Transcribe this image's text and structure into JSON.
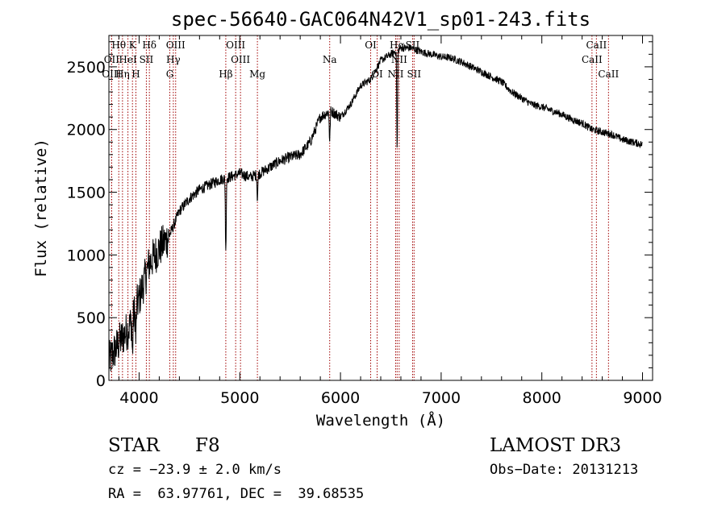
{
  "chart_data": {
    "type": "line",
    "title": "spec-56640-GAC064N42V1_sp01-243.fits",
    "xlabel": "Wavelength (Å)",
    "ylabel": "Flux (relative)",
    "xlim": [
      3700,
      9100
    ],
    "ylim": [
      0,
      2750
    ],
    "x_ticks": [
      4000,
      5000,
      6000,
      7000,
      8000,
      9000
    ],
    "y_ticks": [
      0,
      500,
      1000,
      1500,
      2000,
      2500
    ],
    "continuum": {
      "x": [
        3700,
        3800,
        3900,
        4000,
        4100,
        4200,
        4300,
        4400,
        4500,
        4600,
        4700,
        4800,
        4900,
        5000,
        5100,
        5200,
        5300,
        5400,
        5500,
        5600,
        5700,
        5800,
        5900,
        6000,
        6100,
        6200,
        6300,
        6400,
        6500,
        6600,
        6700,
        6800,
        6900,
        7000,
        7100,
        7200,
        7300,
        7400,
        7500,
        7600,
        7700,
        7800,
        7900,
        8000,
        8100,
        8200,
        8300,
        8400,
        8500,
        8600,
        8700,
        8800,
        8900,
        9000
      ],
      "y": [
        150,
        300,
        420,
        650,
        930,
        1050,
        1150,
        1350,
        1450,
        1520,
        1560,
        1600,
        1620,
        1650,
        1620,
        1650,
        1700,
        1750,
        1780,
        1800,
        1900,
        2100,
        2150,
        2100,
        2200,
        2350,
        2400,
        2550,
        2600,
        2650,
        2650,
        2620,
        2600,
        2580,
        2570,
        2540,
        2500,
        2460,
        2420,
        2380,
        2300,
        2250,
        2200,
        2180,
        2150,
        2120,
        2080,
        2050,
        2000,
        1980,
        1960,
        1920,
        1900,
        1880
      ]
    },
    "absorption_features": [
      {
        "x": 3934,
        "depth": 300
      },
      {
        "x": 3968,
        "depth": 260
      },
      {
        "x": 4861,
        "depth": 600
      },
      {
        "x": 5175,
        "depth": 200
      },
      {
        "x": 5893,
        "depth": 250
      },
      {
        "x": 6563,
        "depth": 800
      }
    ],
    "lines": [
      {
        "name": "Hθ",
        "x": 3798,
        "row": 0
      },
      {
        "name": "OII",
        "x": 3727,
        "row": 1
      },
      {
        "name": "OIII",
        "x": 3727,
        "row": 2
      },
      {
        "name": "Hη",
        "x": 3835,
        "row": 2
      },
      {
        "name": "K",
        "x": 3934,
        "row": 0
      },
      {
        "name": "HeI",
        "x": 3889,
        "row": 1
      },
      {
        "name": "SII",
        "x": 4072,
        "row": 1
      },
      {
        "name": "H",
        "x": 3968,
        "row": 2
      },
      {
        "name": "Hδ",
        "x": 4102,
        "row": 0
      },
      {
        "name": "OIII",
        "x": 4363,
        "row": 0
      },
      {
        "name": "Hγ",
        "x": 4340,
        "row": 1
      },
      {
        "name": "G",
        "x": 4305,
        "row": 2
      },
      {
        "name": "Hβ",
        "x": 4861,
        "row": 2
      },
      {
        "name": "OIII",
        "x": 4959,
        "row": 0
      },
      {
        "name": "OIII",
        "x": 5007,
        "row": 1
      },
      {
        "name": "Mg",
        "x": 5175,
        "row": 2
      },
      {
        "name": "Na",
        "x": 5893,
        "row": 1
      },
      {
        "name": "OI",
        "x": 6300,
        "row": 0
      },
      {
        "name": "OI",
        "x": 6364,
        "row": 2
      },
      {
        "name": "Hα",
        "x": 6563,
        "row": 0
      },
      {
        "name": "NII",
        "x": 6548,
        "row": 2
      },
      {
        "name": "NII",
        "x": 6583,
        "row": 1
      },
      {
        "name": "SII",
        "x": 6716,
        "row": 0
      },
      {
        "name": "SII",
        "x": 6731,
        "row": 2
      },
      {
        "name": "CaII",
        "x": 8498,
        "row": 1
      },
      {
        "name": "CaII",
        "x": 8542,
        "row": 0
      },
      {
        "name": "CaII",
        "x": 8662,
        "row": 2
      }
    ]
  },
  "info": {
    "class_label": "STAR",
    "subclass": "F8",
    "survey": "LAMOST DR3",
    "cz": "cz = −23.9 ± 2.0 km/s",
    "obs_date": "Obs−Date: 20131213",
    "coords": "RA =  63.97761, DEC =  39.68535"
  },
  "colors": {
    "spectrum": "#000000",
    "line_markers": "#a00000",
    "frame": "#000000"
  }
}
